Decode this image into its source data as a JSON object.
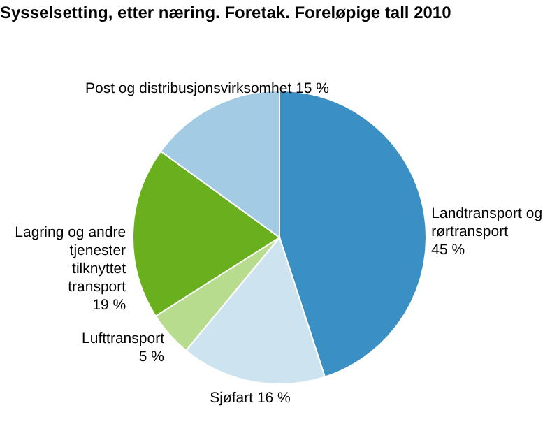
{
  "chart_data": {
    "type": "pie",
    "title": "Sysselsetting, etter næring. Foretak. Foreløpige tall 2010",
    "categories": [
      "Landtransport og rørtransport",
      "Sjøfart",
      "Lufttransport",
      "Lagring og andre tjenester tilknyttet transport",
      "Post og distribusjonsvirksomhet"
    ],
    "values": [
      45,
      16,
      5,
      19,
      15
    ],
    "value_labels": [
      "45 %",
      "16 %",
      "5 %",
      "19 %",
      "15 %"
    ],
    "colors": [
      "#3a8fc4",
      "#cde3f0",
      "#b8dc8e",
      "#6aaf1e",
      "#a3cbe3"
    ],
    "legend": false
  }
}
